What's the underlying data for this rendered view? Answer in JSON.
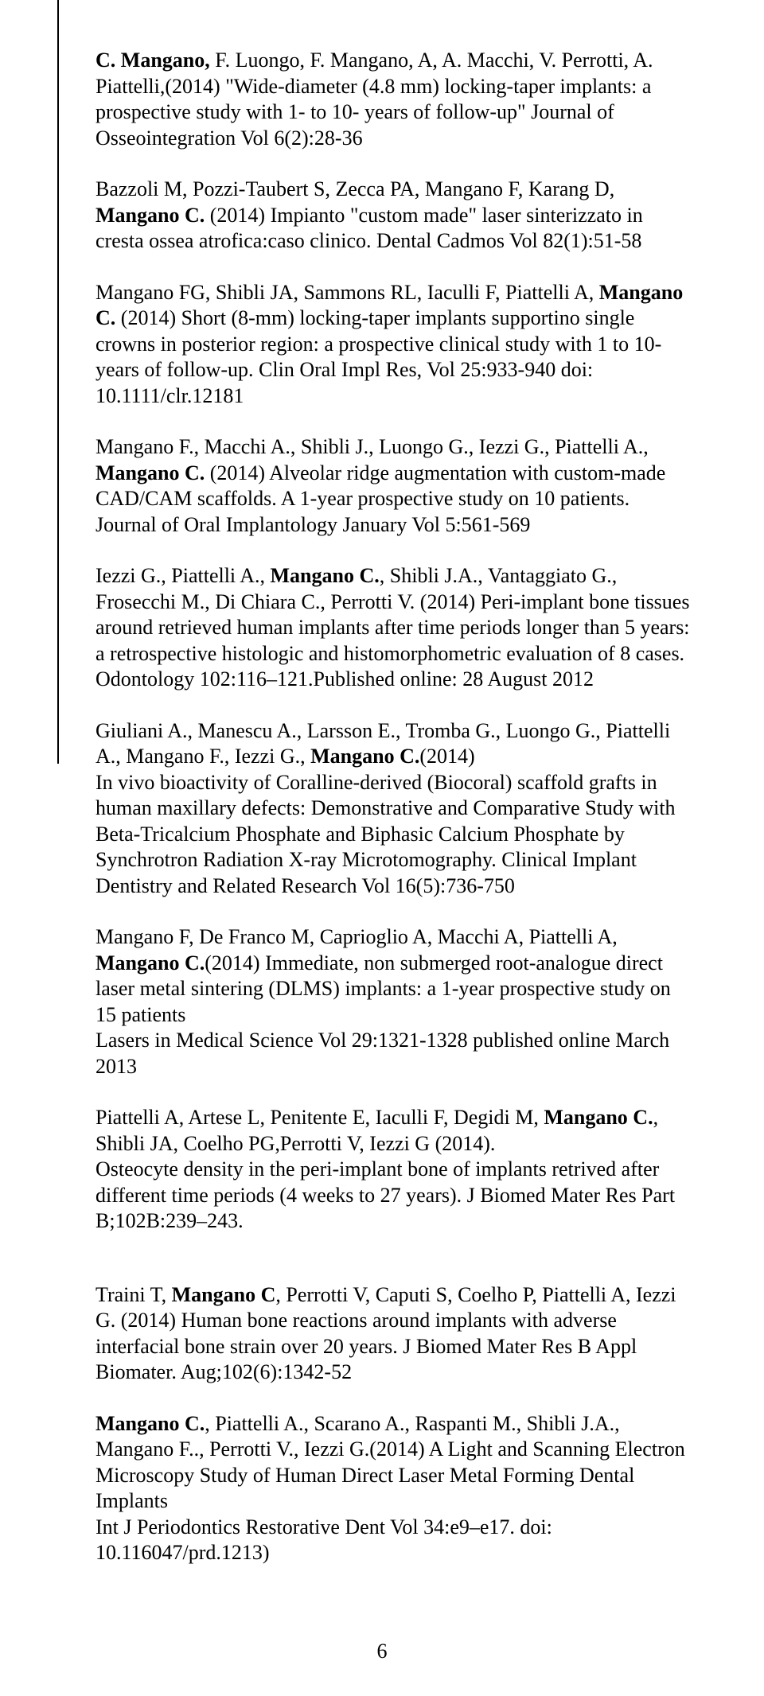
{
  "page_number": "6",
  "entries": [
    {
      "html": "<b>C. Mangano,</b> F. Luongo, F. Mangano, A, A. Macchi, V. Perrotti, A. Piattelli,(2014) \"Wide-diameter (4.8 mm) locking-taper implants: a prospective study with 1- to 10- years of follow-up\" Journal of Osseointegration Vol 6(2):28-36"
    },
    {
      "html": "Bazzoli M, Pozzi-Taubert S, Zecca PA, Mangano F, Karang D, <b>Mangano C.</b> (2014)  Impianto \"custom made\" laser sinterizzato in cresta ossea atrofica:caso clinico. Dental Cadmos  Vol 82(1):51-58"
    },
    {
      "html": "Mangano FG, Shibli JA, Sammons RL, Iaculli F, Piattelli A, <b>Mangano C.</b> (2014) Short (8-mm)  locking-taper  implants supportino single crowns in posterior  region: a prospective clinical study with 1 to 10-years of follow-up. Clin  Oral  Impl  Res, Vol 25:933-940 doi: 10.1111/clr.12181"
    },
    {
      "html": "Mangano F., Macchi A., Shibli J., Luongo G., Iezzi G., Piattelli A., <b>Mangano C.</b> (2014) Alveolar ridge augmentation with custom-made CAD/CAM scaffolds. A 1-year prospective study on 10 patients.<br>Journal of Oral Implantology January Vol 5:561-569"
    },
    {
      "html": "Iezzi G., Piattelli A., <b>Mangano C.</b>, Shibli J.A., Vantaggiato G., Frosecchi M., Di Chiara C., Perrotti V. (2014) Peri-implant bone tissues around retrieved human implants after time periods longer than 5 years: a retrospective histologic and histomorphometric evaluation of 8 cases. Odontology 102:116–121.Published online: 28 August 2012"
    },
    {
      "html": "Giuliani A., Manescu A., Larsson E., Tromba G., Luongo G., Piattelli A., Mangano F., Iezzi G., <b>Mangano C.</b>(2014)<br>In vivo bioactivity of Coralline-derived (Biocoral) scaffold grafts in human maxillary defects: Demonstrative and Comparative Study with Beta-Tricalcium Phosphate and Biphasic Calcium Phosphate by Synchrotron Radiation X-ray Microtomography. Clinical Implant Dentistry and Related Research  Vol 16(5):736-750"
    },
    {
      "html": "Mangano F, De Franco M, Caprioglio A,  Macchi A, Piattelli A, <b>Mangano C.</b>(2014) Immediate, non submerged root-analogue direct laser metal sintering (DLMS) implants: a 1-year prospective study on 15 patients<br>Lasers in Medical Science Vol 29:1321-1328  published online  March 2013"
    },
    {
      "html": "Piattelli A,  Artese L,  Penitente E,  Iaculli F, Degidi M, <b>Mangano C.</b>,  Shibli JA, Coelho PG,Perrotti V, Iezzi G (2014).<br>Osteocyte density in the peri-implant bone of  implants retrived  after different time periods (4 weeks  to 27 years). J Biomed Mater Res Part B;102B:239–243."
    },
    {
      "html": "Traini T, <b>Mangano C</b>, Perrotti V, Caputi S, Coelho P, Piattelli A, Iezzi G. (2014) Human bone reactions around implants with adverse interfacial bone strain over 20 years.  J Biomed Mater Res B Appl Biomater. Aug;102(6):1342-52"
    },
    {
      "html": "<b>Mangano C.</b>, Piattelli A., Scarano A., Raspanti M., Shibli J.A., Mangano F.., Perrotti V., Iezzi G.(2014) A Light and Scanning Electron Microscopy Study of Human Direct Laser Metal Forming Dental Implants<br>Int J Periodontics Restorative Dent Vol 34:e9–e17. doi: 10.116047/prd.1213)"
    }
  ]
}
